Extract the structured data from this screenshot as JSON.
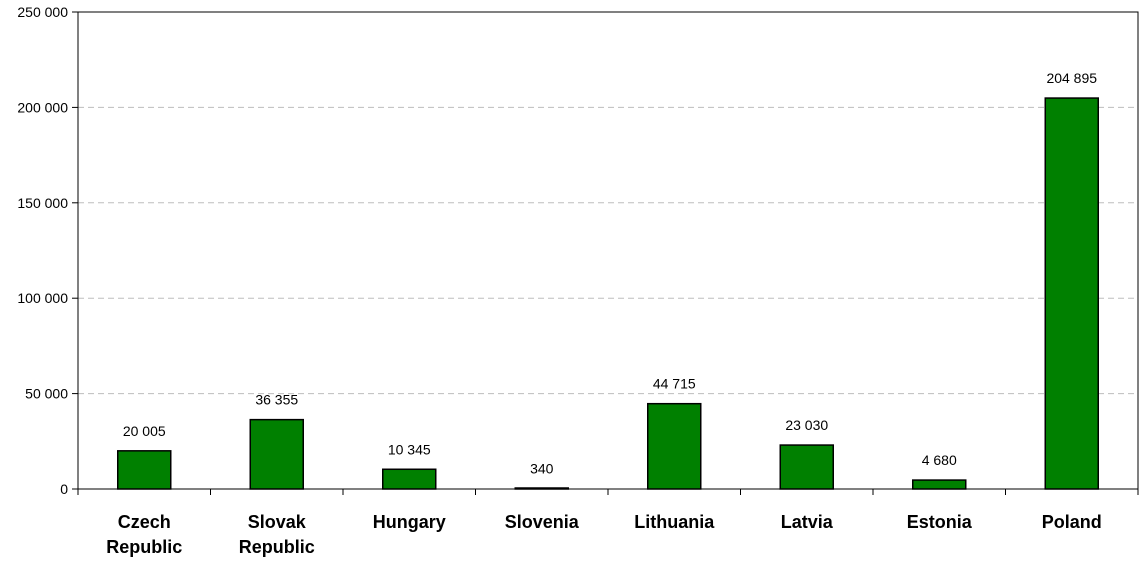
{
  "chart_data": {
    "type": "bar",
    "categories": [
      [
        "Czech",
        "Republic"
      ],
      [
        "Slovak",
        "Republic"
      ],
      [
        "Hungary"
      ],
      [
        "Slovenia"
      ],
      [
        "Lithuania"
      ],
      [
        "Latvia"
      ],
      [
        "Estonia"
      ],
      [
        "Poland"
      ]
    ],
    "values": [
      20005,
      36355,
      10345,
      340,
      44715,
      23030,
      4680,
      204895
    ],
    "data_labels": [
      "20 005",
      "36 355",
      "10 345",
      "340",
      "44 715",
      "23 030",
      "4 680",
      "204 895"
    ],
    "y_ticks": [
      0,
      50000,
      100000,
      150000,
      200000,
      250000
    ],
    "y_tick_labels": [
      "0",
      "50 000",
      "100 000",
      "150 000",
      "200 000",
      "250 000"
    ],
    "ylim": [
      0,
      250000
    ],
    "grid": true,
    "bar_color": "#008000"
  }
}
